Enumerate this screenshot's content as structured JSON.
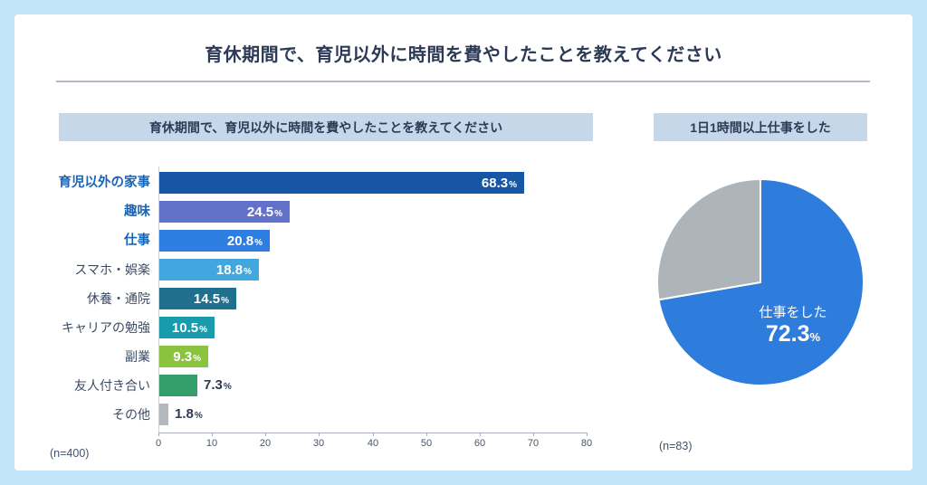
{
  "page": {
    "title": "育休期間で、育児以外に時間を費やしたことを教えてください"
  },
  "left_panel": {
    "header": "育休期間で、育児以外に時間を費やしたことを教えてください",
    "sample_size": "(n=400)"
  },
  "right_panel": {
    "header": "1日1時間以上仕事をした",
    "sample_size": "(n=83)"
  },
  "colors": {
    "page_background": "#c3e5fa",
    "card_background": "#ffffff",
    "header_box_background": "#c7d7ea",
    "title_text": "#2d3a55",
    "emphasized_label_text": "#1a64b6",
    "label_text": "#3d4c63",
    "value_text_inside": "#ffffff",
    "value_text_outside": "#2d3a55"
  },
  "chart_data": [
    {
      "type": "bar",
      "orientation": "horizontal",
      "title": "育休期間で、育児以外に時間を費やしたことを教えてください",
      "categories": [
        "育児以外の家事",
        "趣味",
        "仕事",
        "スマホ・娯楽",
        "休養・通院",
        "キャリアの勉強",
        "副業",
        "友人付き合い",
        "その他"
      ],
      "values": [
        68.3,
        24.5,
        20.8,
        18.8,
        14.5,
        10.5,
        9.3,
        7.3,
        1.8
      ],
      "value_suffix": "%",
      "emphasized": [
        true,
        true,
        true,
        false,
        false,
        false,
        false,
        false,
        false
      ],
      "bar_colors": [
        "#1656a4",
        "#6372c9",
        "#2e7de0",
        "#41a7de",
        "#20708d",
        "#199bae",
        "#8ac43f",
        "#339e69",
        "#b2b8bc"
      ],
      "xlim": [
        0,
        80
      ],
      "xticks": [
        0,
        10,
        20,
        30,
        40,
        50,
        60,
        70,
        80
      ],
      "grid": false,
      "sample_size_note": "(n=400)"
    },
    {
      "type": "pie",
      "title": "1日1時間以上仕事をした",
      "slices": [
        {
          "label": "仕事をした",
          "value": 72.3,
          "color": "#2e7cdb",
          "show_label": true
        },
        {
          "label": "",
          "value": 27.7,
          "color": "#adb5ba",
          "show_label": false
        }
      ],
      "value_suffix": "%",
      "start_angle_deg": -90,
      "direction": "clockwise",
      "sample_size_note": "(n=83)"
    }
  ]
}
